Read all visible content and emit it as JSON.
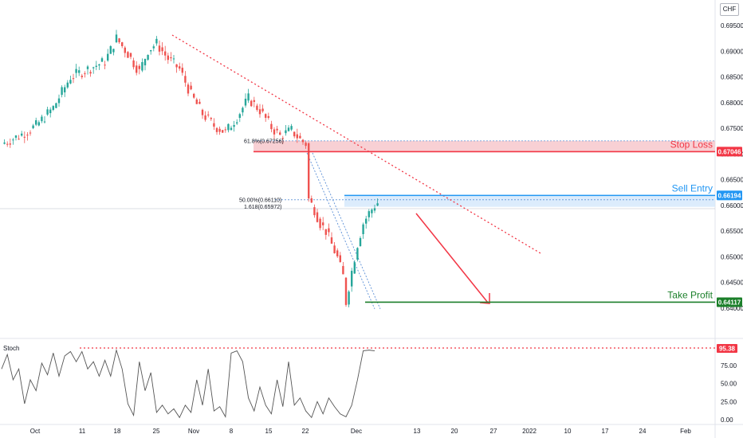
{
  "currency": "CHF",
  "colors": {
    "up": "#26a69a",
    "down": "#ef5350",
    "stop": "#f23645",
    "stop_zone": "#f7c8cc",
    "entry": "#2196f3",
    "entry_zone": "#d6e9fb",
    "take_profit": "#1b7f2a",
    "trend": "#f23645",
    "fib": "#5b8fd6",
    "stoch_line": "#555555",
    "axis_text": "#131722",
    "grid_line": "#e0e3eb"
  },
  "chart_data": {
    "type": "candlestick",
    "price_axis": {
      "ticks": [
        "0.69500",
        "0.69000",
        "0.68500",
        "0.68000",
        "0.67500",
        "0.67000",
        "0.66500",
        "0.66000",
        "0.65500",
        "0.65000",
        "0.64500",
        "0.64000"
      ],
      "range": [
        0.6375,
        0.6985
      ]
    },
    "time_axis": {
      "labels": [
        "Oct",
        "11",
        "18",
        "25",
        "Nov",
        "8",
        "15",
        "22",
        "Dec",
        "13",
        "20",
        "27",
        "2022",
        "10",
        "17",
        "24",
        "Feb"
      ]
    },
    "close_path": [
      [
        0,
        0.672
      ],
      [
        6,
        0.6735
      ],
      [
        12,
        0.6755
      ],
      [
        18,
        0.679
      ],
      [
        24,
        0.685
      ],
      [
        30,
        0.6865
      ],
      [
        36,
        0.688
      ],
      [
        40,
        0.6925
      ],
      [
        44,
        0.6895
      ],
      [
        48,
        0.686
      ],
      [
        51,
        0.6902
      ],
      [
        54,
        0.6915
      ],
      [
        58,
        0.6885
      ],
      [
        62,
        0.6865
      ],
      [
        66,
        0.6815
      ],
      [
        70,
        0.6778
      ],
      [
        74,
        0.6755
      ],
      [
        78,
        0.6742
      ],
      [
        82,
        0.6772
      ],
      [
        86,
        0.6808
      ],
      [
        90,
        0.6785
      ],
      [
        94,
        0.6752
      ],
      [
        97,
        0.6735
      ],
      [
        101,
        0.6746
      ],
      [
        104,
        0.6728
      ],
      [
        106,
        0.672
      ],
      [
        107,
        0.6612
      ],
      [
        109,
        0.6592
      ],
      [
        111,
        0.6565
      ],
      [
        113,
        0.655
      ],
      [
        115,
        0.6524
      ],
      [
        117,
        0.6498
      ],
      [
        119,
        0.6462
      ],
      [
        120,
        0.6412
      ],
      [
        122,
        0.6472
      ],
      [
        124,
        0.6525
      ],
      [
        126,
        0.6565
      ],
      [
        128,
        0.6585
      ],
      [
        130,
        0.66
      ],
      [
        131,
        0.6605
      ]
    ],
    "levels": [
      {
        "name": "Stop Loss",
        "price": 0.67046,
        "badge": "0.67046"
      },
      {
        "name": "Sell Entry",
        "price": 0.66194,
        "badge": "0.66194"
      },
      {
        "name": "Take Profit",
        "price": 0.64117,
        "badge": "0.64117"
      }
    ],
    "zones": [
      {
        "from": 0.67046,
        "to": 0.67256
      },
      {
        "from": 0.65972,
        "to": 0.66194
      }
    ],
    "fib_labels": [
      {
        "text": "61.8%(0.67256)",
        "price": 0.67256
      },
      {
        "text": "50.00%(0.66110)",
        "price": 0.6611
      },
      {
        "text": "1.618(0.65972)",
        "price": 0.65972
      }
    ],
    "stochastic": {
      "title": "Stoch",
      "current": "95.38",
      "ticks": [
        "75.00",
        "50.00",
        "25.00",
        "0.00"
      ],
      "range": [
        0,
        100
      ],
      "path": [
        [
          0,
          70
        ],
        [
          2,
          90
        ],
        [
          4,
          55
        ],
        [
          6,
          70
        ],
        [
          8,
          22
        ],
        [
          10,
          55
        ],
        [
          12,
          40
        ],
        [
          14,
          78
        ],
        [
          16,
          62
        ],
        [
          18,
          92
        ],
        [
          20,
          60
        ],
        [
          22,
          88
        ],
        [
          24,
          94
        ],
        [
          26,
          80
        ],
        [
          28,
          94
        ],
        [
          30,
          70
        ],
        [
          32,
          80
        ],
        [
          34,
          60
        ],
        [
          36,
          82
        ],
        [
          38,
          60
        ],
        [
          40,
          96
        ],
        [
          42,
          70
        ],
        [
          44,
          22
        ],
        [
          46,
          6
        ],
        [
          48,
          80
        ],
        [
          50,
          40
        ],
        [
          52,
          65
        ],
        [
          54,
          10
        ],
        [
          56,
          20
        ],
        [
          58,
          8
        ],
        [
          60,
          15
        ],
        [
          62,
          3
        ],
        [
          64,
          20
        ],
        [
          66,
          10
        ],
        [
          68,
          55
        ],
        [
          70,
          20
        ],
        [
          72,
          70
        ],
        [
          74,
          12
        ],
        [
          76,
          18
        ],
        [
          78,
          4
        ],
        [
          80,
          92
        ],
        [
          82,
          95
        ],
        [
          84,
          80
        ],
        [
          86,
          30
        ],
        [
          88,
          12
        ],
        [
          90,
          45
        ],
        [
          92,
          20
        ],
        [
          94,
          8
        ],
        [
          96,
          55
        ],
        [
          98,
          18
        ],
        [
          100,
          80
        ],
        [
          102,
          20
        ],
        [
          104,
          30
        ],
        [
          106,
          12
        ],
        [
          108,
          3
        ],
        [
          110,
          25
        ],
        [
          112,
          8
        ],
        [
          114,
          30
        ],
        [
          116,
          18
        ],
        [
          118,
          8
        ],
        [
          120,
          4
        ],
        [
          122,
          20
        ],
        [
          124,
          55
        ],
        [
          126,
          95
        ],
        [
          128,
          96
        ],
        [
          130,
          95
        ]
      ]
    }
  }
}
